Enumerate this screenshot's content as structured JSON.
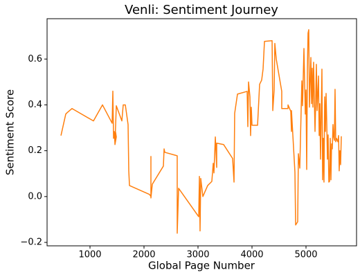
{
  "chart_data": {
    "type": "line",
    "title": "Venli: Sentiment Journey",
    "x_label": "Global Page Number",
    "y_label": "Sentiment Score",
    "xlim": [
      205,
      5936
    ],
    "ylim": [
      -0.215,
      0.776
    ],
    "xticks": [
      1000,
      2000,
      3000,
      4000,
      5000
    ],
    "yticks": [
      {
        "value": -0.2,
        "label": "−0.2"
      },
      {
        "value": 0,
        "label": "0.0"
      },
      0.2,
      0.4,
      0.6
    ],
    "series": [
      {
        "name": "Venli",
        "color": "#ff7f0e",
        "x": [
          462,
          551,
          577,
          667,
          1064,
          1231,
          1410,
          1423,
          1436,
          1449,
          1462,
          1474,
          1487,
          1462,
          1487,
          1590,
          1615,
          1654,
          1705,
          1718,
          1731,
          2103,
          2128,
          2128,
          2128,
          2154,
          2359,
          2372,
          2385,
          2615,
          2615,
          2628,
          2641,
          3013,
          3026,
          3038,
          3051,
          3090,
          3179,
          3256,
          3282,
          3295,
          3321,
          3346,
          3346,
          3474,
          3641,
          3667,
          3679,
          3731,
          3910,
          3923,
          3936,
          3962,
          3974,
          3987,
          4000,
          4103,
          4141,
          4179,
          4205,
          4231,
          4372,
          4385,
          4410,
          4423,
          4449,
          4551,
          4551,
          4667,
          4667,
          4718,
          4731,
          4731,
          4795,
          4808,
          4846,
          4859,
          4885,
          4923,
          4936,
          4962,
          4987,
          5000,
          5013,
          5026,
          5038,
          5051,
          5064,
          5090,
          5103,
          5115,
          5128,
          5141,
          5167,
          5179,
          5192,
          5205,
          5231,
          5244,
          5256,
          5269,
          5295,
          5308,
          5321,
          5333,
          5346,
          5359,
          5372,
          5385,
          5397,
          5410,
          5423,
          5436,
          5449,
          5462,
          5474,
          5487,
          5500,
          5513,
          5526,
          5538,
          5551,
          5564,
          5590,
          5603,
          5615,
          5628,
          5641,
          5654
        ],
        "values": [
          0.266,
          0.36,
          0.366,
          0.384,
          0.33,
          0.4,
          0.32,
          0.46,
          0.254,
          0.284,
          0.23,
          0.28,
          0.26,
          0.227,
          0.396,
          0.33,
          0.4,
          0.4,
          0.314,
          0.112,
          0.048,
          0.009,
          0.0,
          0.175,
          -0.006,
          0.054,
          0.133,
          0.208,
          0.193,
          0.178,
          -0.16,
          -0.063,
          0.036,
          -0.088,
          0.088,
          -0.15,
          0.079,
          0.0,
          0.048,
          0.066,
          0.145,
          0.103,
          0.26,
          0.127,
          0.233,
          0.227,
          0.166,
          0.063,
          0.363,
          0.447,
          0.459,
          0.305,
          0.5,
          0.435,
          0.266,
          0.39,
          0.311,
          0.311,
          0.49,
          0.508,
          0.556,
          0.677,
          0.68,
          0.375,
          0.465,
          0.668,
          0.6,
          0.459,
          0.384,
          0.384,
          0.4,
          0.372,
          0.284,
          0.375,
          0.106,
          -0.124,
          -0.11,
          0.187,
          0.124,
          0.505,
          0.396,
          0.646,
          0.36,
          0.465,
          0.118,
          0.556,
          0.713,
          0.728,
          0.39,
          0.607,
          0.405,
          0.56,
          0.39,
          0.586,
          0.284,
          0.405,
          0.577,
          0.375,
          0.526,
          0.266,
          0.405,
          0.163,
          0.556,
          0.073,
          0.254,
          0.063,
          0.435,
          0.284,
          0.45,
          0.314,
          0.163,
          0.269,
          0.063,
          0.066,
          0.254,
          0.073,
          0.23,
          0.208,
          0.314,
          0.26,
          0.245,
          0.468,
          0.239,
          0.254,
          0.239,
          0.266,
          0.112,
          0.2,
          0.139,
          0.263
        ]
      }
    ]
  }
}
